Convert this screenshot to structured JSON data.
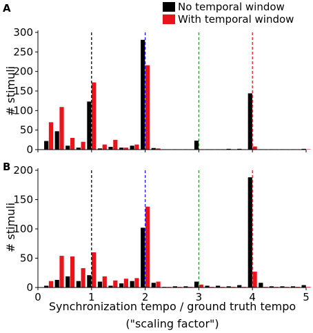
{
  "legend": {
    "entries": [
      {
        "label": "No temporal window",
        "color": "#000000"
      },
      {
        "label": "With temporal window",
        "color": "#e8141c"
      }
    ]
  },
  "xlabel_line1": "Synchronization tempo / ground truth tempo",
  "xlabel_line2": "(\"scaling factor\")",
  "vlines": [
    {
      "x": 1,
      "color": "#000000"
    },
    {
      "x": 2,
      "color": "#1a1aff"
    },
    {
      "x": 3,
      "color": "#2e9e2e"
    },
    {
      "x": 4,
      "color": "#e8141c"
    }
  ],
  "chart_data": [
    {
      "type": "bar",
      "panel": "A",
      "ylabel": "# stimuli",
      "xlim": [
        0,
        5
      ],
      "ylim": [
        0,
        300
      ],
      "xticks": [
        0,
        1,
        2,
        3,
        4,
        5
      ],
      "yticks": [
        0,
        50,
        100,
        150,
        200,
        250,
        300
      ],
      "show_xtick_labels": false,
      "bins": [
        0.2,
        0.4,
        0.6,
        0.8,
        1.0,
        1.2,
        1.4,
        1.6,
        1.8,
        2.0,
        2.2,
        2.4,
        2.6,
        2.8,
        3.0,
        3.2,
        3.4,
        3.6,
        3.8,
        4.0,
        4.2,
        4.4,
        4.6,
        4.8,
        5.0
      ],
      "series": [
        {
          "name": "No temporal window",
          "color": "#000000",
          "values": [
            22,
            47,
            10,
            5,
            123,
            3,
            7,
            5,
            10,
            281,
            4,
            1,
            1,
            1,
            23,
            1,
            1,
            2,
            2,
            144,
            1,
            1,
            1,
            1,
            2
          ]
        },
        {
          "name": "With temporal window",
          "color": "#e8141c",
          "values": [
            70,
            109,
            30,
            20,
            172,
            13,
            25,
            5,
            13,
            216,
            3,
            1,
            1,
            1,
            1,
            1,
            1,
            1,
            1,
            8,
            1,
            1,
            1,
            1,
            1
          ]
        }
      ]
    },
    {
      "type": "bar",
      "panel": "B",
      "ylabel": "# stimuli",
      "xlim": [
        0,
        5
      ],
      "ylim": [
        0,
        200
      ],
      "xticks": [
        0,
        1,
        2,
        3,
        4,
        5
      ],
      "yticks": [
        0,
        50,
        100,
        150,
        200
      ],
      "show_xtick_labels": true,
      "bins": [
        0.2,
        0.4,
        0.6,
        0.8,
        1.0,
        1.2,
        1.4,
        1.6,
        1.8,
        2.0,
        2.2,
        2.4,
        2.6,
        2.8,
        3.0,
        3.2,
        3.4,
        3.6,
        3.8,
        4.0,
        4.2,
        4.4,
        4.6,
        4.8,
        5.0
      ],
      "series": [
        {
          "name": "No temporal window",
          "color": "#000000",
          "values": [
            3,
            13,
            19,
            11,
            21,
            10,
            3,
            7,
            11,
            102,
            8,
            1,
            2,
            2,
            10,
            3,
            3,
            2,
            4,
            188,
            8,
            2,
            2,
            2,
            4
          ]
        },
        {
          "name": "With temporal window",
          "color": "#e8141c",
          "values": [
            11,
            54,
            53,
            33,
            60,
            19,
            12,
            15,
            16,
            138,
            10,
            1,
            1,
            1,
            5,
            1,
            1,
            1,
            1,
            27,
            1,
            1,
            1,
            1,
            1
          ]
        }
      ]
    }
  ]
}
